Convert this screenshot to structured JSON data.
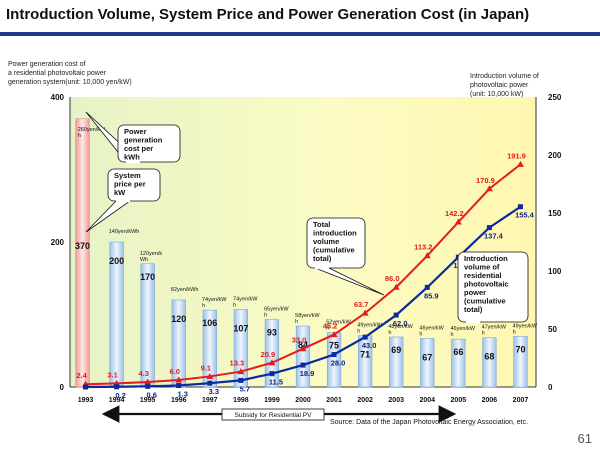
{
  "slide": {
    "title": "Introduction Volume, System Price and Power Generation Cost (in Japan)",
    "page_number": "61",
    "source": "Source:  Data of the Japan Photovoltaic Energy Association, etc.",
    "subsidy_label": "Subsidy for Residential PV"
  },
  "colors": {
    "cost_bar": "#bcd6f2",
    "cost_bar_1993": "#f7b9b5",
    "price_line": "#e41c1c",
    "volume_line": "#0f1f7a",
    "residential_line": "#0c2a99"
  },
  "chart_data": {
    "type": "bar",
    "categories": [
      "1993",
      "1994",
      "1995",
      "1996",
      "1997",
      "1998",
      "1999",
      "2000",
      "2001",
      "2002",
      "2003",
      "2004",
      "2005",
      "2006",
      "2007"
    ],
    "left_axis": {
      "label_lines": [
        "Power generation cost of",
        "a residential photovoltaic power",
        "generation system(unit: 10,000 yen/kW)"
      ],
      "range": [
        0,
        400
      ],
      "ticks": [
        "0",
        "200",
        "400"
      ]
    },
    "right_axis": {
      "label_lines": [
        "Introduction volume of",
        "photovoltaic power",
        "(unit: 10,000 kW)"
      ],
      "range": [
        0,
        250
      ],
      "ticks": [
        "0",
        "50",
        "100",
        "150",
        "200",
        "250"
      ]
    },
    "cost_bars": {
      "values": [
        370,
        200,
        170,
        120,
        106,
        107,
        93,
        84,
        75,
        71,
        69,
        67,
        66,
        68,
        70
      ],
      "value_labels": [
        "370",
        "200",
        "170",
        "120",
        "106",
        "107",
        "93",
        "84",
        "75",
        "71",
        "69",
        "67",
        "66",
        "68",
        "70"
      ],
      "top_labels": [
        "260yen/kW h",
        "140yen/kWh",
        "120yen/k Wh",
        "82yen/kWh",
        "74yen/kW h",
        "74yen/kW h",
        "65yen/kW h",
        "58yen/kW h",
        "52yen/kW h",
        "49yen/kW h",
        "48yen/kW h",
        "46yen/kW h",
        "46yen/kW h",
        "47yen/kW h",
        "49yen/kW h"
      ]
    },
    "series": [
      {
        "name": "Total introduction volume (cumulative total)",
        "axis": "right",
        "values": [
          2.4,
          3.1,
          4.3,
          6.0,
          9.1,
          13.3,
          20.9,
          33.0,
          45.2,
          63.7,
          86.0,
          113.2,
          142.2,
          170.9,
          191.9
        ],
        "labels": [
          "2.4",
          "3.1",
          "4.3",
          "6.0",
          "9.1",
          "13.3",
          "20.9",
          "33.0",
          "45.2",
          "63.7",
          "86.0",
          "113.2",
          "142.2",
          "170.9",
          "191.9"
        ]
      },
      {
        "name": "Introduction volume of residential photovoltaic power (cumulative total)",
        "axis": "right",
        "values": [
          0.0,
          0.2,
          0.6,
          1.3,
          3.3,
          5.7,
          11.5,
          18.9,
          28.0,
          43.0,
          62.0,
          85.9,
          111.9,
          137.4,
          155.4
        ],
        "labels": [
          "",
          "0.2",
          "0.6",
          "1.3",
          "3.3",
          "5.7",
          "11.5",
          "18.9",
          "28.0",
          "43.0",
          "62.0",
          "85.9",
          "111.9",
          "137.4",
          "155.4"
        ]
      }
    ],
    "callouts": {
      "cost": [
        "Power",
        "generation",
        "cost per",
        "kWh"
      ],
      "price": [
        "System",
        "price per",
        "kW"
      ],
      "total": [
        "Total",
        "introduction",
        "volume",
        "(cumulative",
        "total)"
      ],
      "residential": [
        "Introduction",
        "volume of",
        "residential",
        "photovoltaic",
        "power",
        "(cumulative",
        "total)"
      ]
    },
    "grid": false,
    "legend": "callouts"
  }
}
